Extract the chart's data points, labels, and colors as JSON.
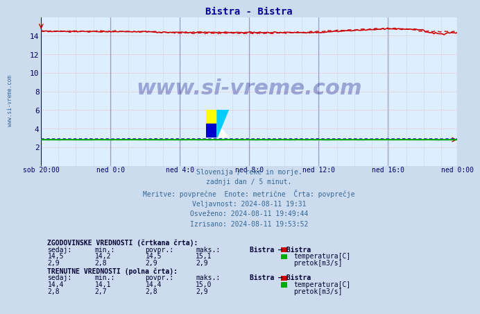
{
  "title": "Bistra - Bistra",
  "title_color": "#000099",
  "bg_color": "#ccdcee",
  "plot_bg_color": "#ddeeff",
  "grid_color_v_major": "#9999cc",
  "grid_color_h": "#ffaaaa",
  "grid_color_v_minor": "#bbbbdd",
  "xlabel_ticks": [
    "sob 20:00",
    "ned 0:0",
    "ned 4:0",
    "ned 8:0",
    "ned 12:0",
    "ned 16:0",
    "ned 0:00"
  ],
  "ylim": [
    0,
    16
  ],
  "yticks": [
    2,
    4,
    6,
    8,
    10,
    12,
    14
  ],
  "temp_solid_value": 14.4,
  "temp_dashed_value": 14.5,
  "flow_solid_value": 2.8,
  "flow_dashed_value": 2.9,
  "temp_color": "#cc0000",
  "flow_solid_color": "#00aa00",
  "flow_dashed_color": "#0000cc",
  "watermark_color": "#000077",
  "n_points": 288,
  "subtitle_lines": [
    "Slovenija / reke in morje.",
    "zadnji dan / 5 minut.",
    "Meritve: povprečne  Enote: metrične  Črta: povprečje",
    "Veljavnost: 2024-08-11 19:31",
    "Osveženo: 2024-08-11 19:49:44",
    "Izrisano: 2024-08-11 19:53:52"
  ],
  "table_hist_header": "ZGODOVINSKE VREDNOSTI (črtkana črta):",
  "table_curr_header": "TRENUTNE VREDNOSTI (polna črta):",
  "table_col_headers": [
    "sedaj:",
    "min.:",
    "povpr.:",
    "maks.:",
    "Bistra – Bistra"
  ],
  "hist_temp": [
    "14,5",
    "14,2",
    "14,5",
    "15,1"
  ],
  "hist_flow": [
    "2,9",
    "2,8",
    "2,9",
    "2,9"
  ],
  "curr_temp": [
    "14,4",
    "14,1",
    "14,4",
    "15,0"
  ],
  "curr_flow": [
    "2,8",
    "2,7",
    "2,8",
    "2,9"
  ],
  "legend_temp_label": "temperatura[C]",
  "legend_flow_label": "pretok[m3/s]"
}
